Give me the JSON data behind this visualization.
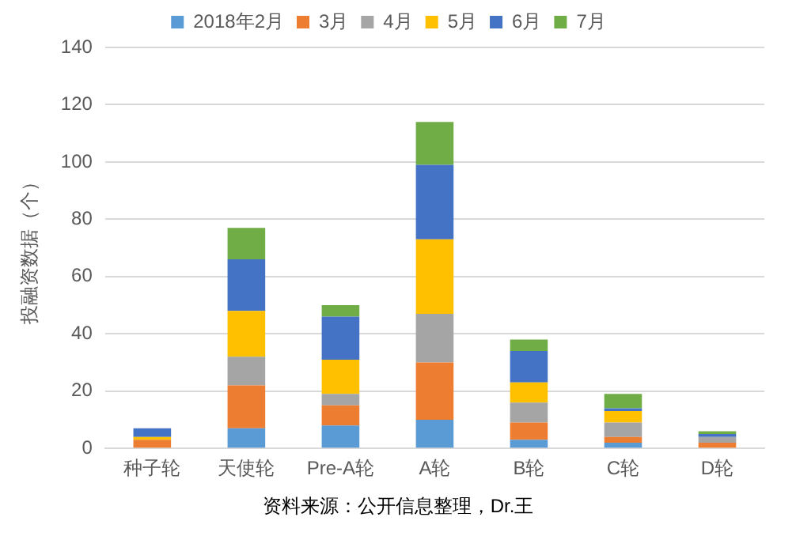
{
  "chart_data": {
    "type": "bar",
    "stacked": true,
    "ylabel": "投融资数据（个）",
    "categories": [
      "种子轮",
      "天使轮",
      "Pre-A轮",
      "A轮",
      "B轮",
      "C轮",
      "D轮"
    ],
    "series": [
      {
        "name": "2018年2月",
        "color": "#5b9bd5",
        "values": [
          0,
          7,
          8,
          10,
          3,
          2,
          0
        ]
      },
      {
        "name": "3月",
        "color": "#ed7d31",
        "values": [
          3,
          15,
          7,
          20,
          6,
          2,
          2
        ]
      },
      {
        "name": "4月",
        "color": "#a5a5a5",
        "values": [
          0,
          10,
          4,
          17,
          7,
          5,
          2
        ]
      },
      {
        "name": "5月",
        "color": "#ffc000",
        "values": [
          1,
          16,
          12,
          26,
          7,
          4,
          0
        ]
      },
      {
        "name": "6月",
        "color": "#4472c4",
        "values": [
          3,
          18,
          15,
          26,
          11,
          1,
          1
        ]
      },
      {
        "name": "7月",
        "color": "#70ad47",
        "values": [
          0,
          11,
          4,
          15,
          4,
          5,
          1
        ]
      }
    ],
    "ylim": [
      0,
      140
    ],
    "yticks": [
      0,
      20,
      40,
      60,
      80,
      100,
      120,
      140
    ],
    "grid": "y",
    "legend": "top",
    "annotations": [
      "资料来源：公开信息整理，Dr.王"
    ]
  }
}
